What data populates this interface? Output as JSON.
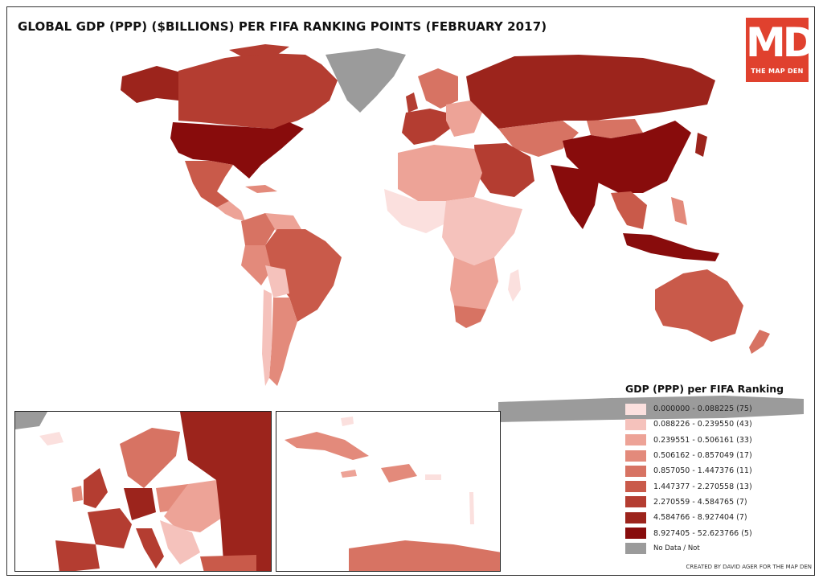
{
  "title": "GLOBAL GDP (PPP) ($BILLIONS) PER FIFA RANKING POINTS (FEBRUARY 2017)",
  "logo": {
    "mark": "MD",
    "text": "THE MAP DEN",
    "color": "#e0412e"
  },
  "legend": {
    "title": "GDP (PPP) per FIFA Ranking",
    "classes": [
      {
        "label": "0.000000 - 0.088225 (75)",
        "color": "#fbe0de"
      },
      {
        "label": "0.088226 - 0.239550 (43)",
        "color": "#f5c2bc"
      },
      {
        "label": "0.239551 - 0.506161 (33)",
        "color": "#eda397"
      },
      {
        "label": "0.506162 - 0.857049 (17)",
        "color": "#e38a7b"
      },
      {
        "label": "0.857050 - 1.447376 (11)",
        "color": "#d77363"
      },
      {
        "label": "1.447377 - 2.270558 (13)",
        "color": "#c95a4a"
      },
      {
        "label": "2.270559 - 4.584765 (7)",
        "color": "#b43d31"
      },
      {
        "label": "4.584766 - 8.927404 (7)",
        "color": "#9c241c"
      },
      {
        "label": "8.927405 - 52.623766 (5)",
        "color": "#880c0c"
      }
    ],
    "no_data": {
      "label": "No Data / Not",
      "color": "#9b9b9b"
    }
  },
  "credit": "CREATED BY DAVID AGER FOR THE MAP DEN"
}
